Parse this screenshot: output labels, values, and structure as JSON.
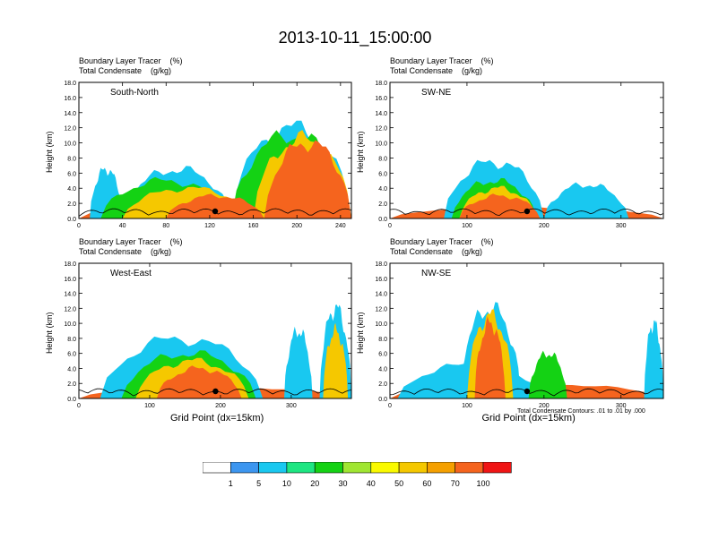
{
  "title": "2013-10-11_15:00:00",
  "chart_data": [
    {
      "type": "heatmap",
      "panel_label": "South-North",
      "title_lines": [
        "Boundary Layer Tracer    (%)",
        "Total Condensate    (g/kg)"
      ],
      "ylabel": "Height (km)",
      "xlabel": "",
      "xlim": [
        0,
        250
      ],
      "ylim": [
        0,
        18
      ],
      "xticks": [
        0,
        40,
        80,
        120,
        160,
        200,
        240
      ],
      "yticks": [
        "0.0",
        "2.0",
        "4.0",
        "6.0",
        "8.0",
        "10.0",
        "12.0",
        "14.0",
        "16.0",
        "18.0"
      ],
      "marker_x": 125,
      "blobs": [
        {
          "x0": 0,
          "x1": 250,
          "top": 2.0,
          "v": 70
        },
        {
          "x0": 10,
          "x1": 40,
          "top": 6.5,
          "v": 5
        },
        {
          "x0": 40,
          "x1": 140,
          "top": 6.5,
          "v": 5
        },
        {
          "x0": 140,
          "x1": 250,
          "top": 12.0,
          "v": 5
        },
        {
          "x0": 20,
          "x1": 140,
          "top": 5.0,
          "v": 20
        },
        {
          "x0": 140,
          "x1": 250,
          "top": 11.0,
          "v": 20
        },
        {
          "x0": 40,
          "x1": 160,
          "top": 4.0,
          "v": 50
        },
        {
          "x0": 160,
          "x1": 250,
          "top": 10.5,
          "v": 50
        },
        {
          "x0": 80,
          "x1": 170,
          "top": 3.0,
          "v": 70
        },
        {
          "x0": 170,
          "x1": 250,
          "top": 10.0,
          "v": 90
        }
      ]
    },
    {
      "type": "heatmap",
      "panel_label": "SW-NE",
      "title_lines": [
        "Boundary Layer Tracer    (%)",
        "Total Condensate    (g/kg)"
      ],
      "ylabel": "Height (km)",
      "xlabel": "",
      "xlim": [
        0,
        355
      ],
      "ylim": [
        0,
        18
      ],
      "xticks": [
        0,
        100,
        200,
        300
      ],
      "yticks": [
        "0.0",
        "2.0",
        "4.0",
        "6.0",
        "8.0",
        "10.0",
        "12.0",
        "14.0",
        "16.0",
        "18.0"
      ],
      "marker_x": 178,
      "blobs": [
        {
          "x0": 0,
          "x1": 355,
          "top": 1.5,
          "v": 70
        },
        {
          "x0": 70,
          "x1": 200,
          "top": 7.5,
          "v": 5
        },
        {
          "x0": 80,
          "x1": 190,
          "top": 5.0,
          "v": 20
        },
        {
          "x0": 90,
          "x1": 190,
          "top": 4.0,
          "v": 50
        },
        {
          "x0": 90,
          "x1": 195,
          "top": 3.0,
          "v": 70
        },
        {
          "x0": 200,
          "x1": 310,
          "top": 4.5,
          "v": 5
        }
      ]
    },
    {
      "type": "heatmap",
      "panel_label": "West-East",
      "title_lines": [
        "Boundary Layer Tracer    (%)",
        "Total Condensate    (g/kg)"
      ],
      "ylabel": "Height (km)",
      "xlabel": "Grid Point (dx=15km)",
      "xlim": [
        0,
        385
      ],
      "ylim": [
        0,
        18
      ],
      "xticks": [
        0,
        100,
        200,
        300
      ],
      "yticks": [
        "0.0",
        "2.0",
        "4.0",
        "6.0",
        "8.0",
        "10.0",
        "12.0",
        "14.0",
        "16.0",
        "18.0"
      ],
      "marker_x": 193,
      "blobs": [
        {
          "x0": 0,
          "x1": 385,
          "top": 1.5,
          "v": 70
        },
        {
          "x0": 30,
          "x1": 260,
          "top": 8.0,
          "v": 5
        },
        {
          "x0": 60,
          "x1": 250,
          "top": 6.0,
          "v": 20
        },
        {
          "x0": 80,
          "x1": 240,
          "top": 5.0,
          "v": 50
        },
        {
          "x0": 110,
          "x1": 230,
          "top": 4.0,
          "v": 70
        },
        {
          "x0": 290,
          "x1": 330,
          "top": 9.0,
          "v": 5
        },
        {
          "x0": 340,
          "x1": 385,
          "top": 12.0,
          "v": 5
        },
        {
          "x0": 345,
          "x1": 380,
          "top": 9.0,
          "v": 50
        }
      ]
    },
    {
      "type": "heatmap",
      "panel_label": "NW-SE",
      "title_lines": [
        "Boundary Layer Tracer    (%)",
        "Total Condensate    (g/kg)"
      ],
      "ylabel": "Height (km)",
      "xlabel": "Grid Point (dx=15km)",
      "note": "Total Condensate Contours: .01 to .01 by .000",
      "xlim": [
        0,
        355
      ],
      "ylim": [
        0,
        18
      ],
      "xticks": [
        0,
        100,
        200,
        300
      ],
      "yticks": [
        "0.0",
        "2.0",
        "4.0",
        "6.0",
        "8.0",
        "10.0",
        "12.0",
        "14.0",
        "16.0",
        "18.0"
      ],
      "marker_x": 178,
      "blobs": [
        {
          "x0": 0,
          "x1": 355,
          "top": 2.0,
          "v": 70
        },
        {
          "x0": 10,
          "x1": 200,
          "top": 4.5,
          "v": 5
        },
        {
          "x0": 90,
          "x1": 170,
          "top": 12.0,
          "v": 5
        },
        {
          "x0": 100,
          "x1": 160,
          "top": 11.0,
          "v": 50
        },
        {
          "x0": 110,
          "x1": 150,
          "top": 10.0,
          "v": 90
        },
        {
          "x0": 180,
          "x1": 230,
          "top": 6.0,
          "v": 20
        },
        {
          "x0": 330,
          "x1": 355,
          "top": 10.0,
          "v": 5
        }
      ]
    }
  ],
  "colorbar": {
    "labels": [
      "1",
      "5",
      "10",
      "20",
      "30",
      "40",
      "50",
      "60",
      "70",
      "100"
    ],
    "colors": [
      "#ffffff",
      "#3c96f0",
      "#19c8f0",
      "#1ee682",
      "#14d214",
      "#a0e632",
      "#fafa00",
      "#f5c800",
      "#f5a000",
      "#f5641e",
      "#f01414"
    ]
  }
}
